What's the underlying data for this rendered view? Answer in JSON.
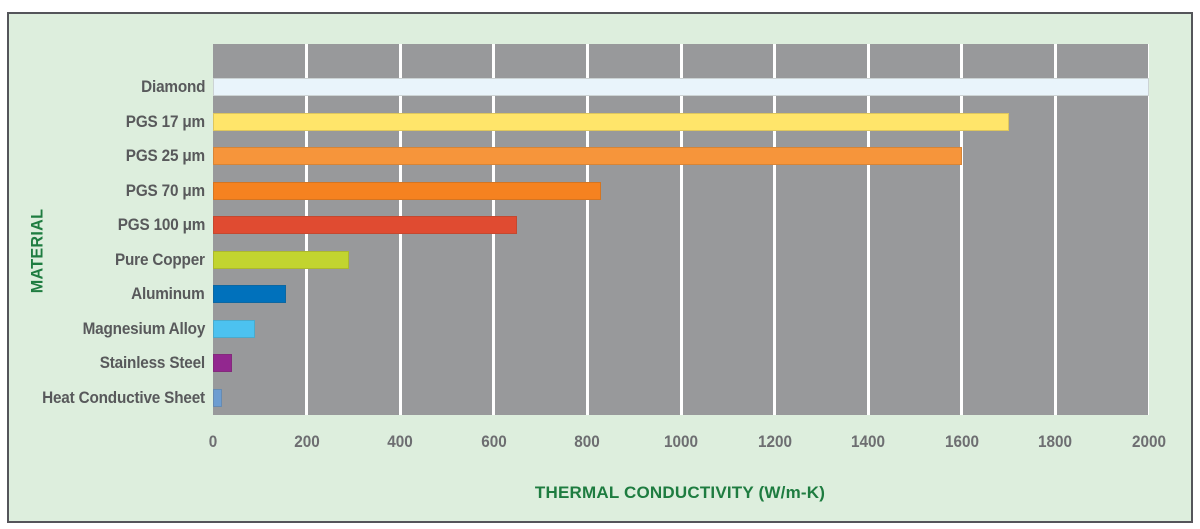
{
  "chart_data": {
    "type": "bar",
    "orientation": "horizontal",
    "title": "",
    "xlabel": "THERMAL CONDUCTIVITY (W/m-K)",
    "ylabel": "MATERIAL",
    "xlim": [
      0,
      2000
    ],
    "xticks": [
      0,
      200,
      400,
      600,
      800,
      1000,
      1200,
      1400,
      1600,
      1800,
      2000
    ],
    "grid": true,
    "legend_position": "none",
    "categories": [
      "Diamond",
      "PGS 17 μm",
      "PGS 25 μm",
      "PGS 70 μm",
      "PGS 100 μm",
      "Pure Copper",
      "Aluminum",
      "Magnesium Alloy",
      "Stainless Steel",
      "Heat Conductive Sheet"
    ],
    "values": [
      2000,
      1700,
      1600,
      830,
      650,
      290,
      155,
      90,
      40,
      20
    ],
    "bar_colors": [
      "#e9f4fb",
      "#ffe56a",
      "#f6953b",
      "#f58220",
      "#e04b31",
      "#c2d42f",
      "#0071bc",
      "#4cc2f0",
      "#92278f",
      "#6d9dd1"
    ]
  },
  "style": {
    "page_background": "#ffffff",
    "figure_background": "#ddeedd",
    "figure_border_color": "#54555a",
    "plot_background": "#98999b",
    "gridline_color": "#ffffff",
    "tick_label_color": "#6d6e71",
    "category_label_color": "#58595b",
    "axis_title_color": "#1e7c40"
  }
}
